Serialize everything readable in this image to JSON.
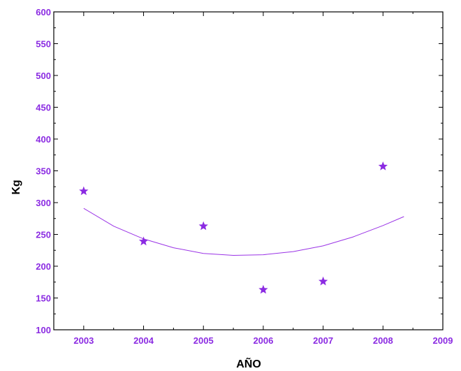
{
  "chart_data": {
    "type": "scatter",
    "title": "",
    "xlabel": "AÑO",
    "ylabel": "Kg",
    "xlim": [
      2002.5,
      2009
    ],
    "ylim": [
      100,
      600
    ],
    "x_ticks": [
      2003,
      2004,
      2005,
      2006,
      2007,
      2008,
      2009
    ],
    "y_ticks": [
      100,
      150,
      200,
      250,
      300,
      350,
      400,
      450,
      500,
      550,
      600
    ],
    "grid": false,
    "legend": "none",
    "marker": "star",
    "series": [
      {
        "x": [
          2003,
          2004,
          2005,
          2006,
          2007,
          2008
        ],
        "y": [
          318,
          239,
          263,
          163,
          176,
          357
        ]
      }
    ],
    "fit_curve": {
      "type": "quadratic",
      "x": [
        2003,
        2003.5,
        2004,
        2004.5,
        2005,
        2005.5,
        2006,
        2006.5,
        2007,
        2007.5,
        2008,
        2008.35
      ],
      "y": [
        291,
        263,
        243,
        229,
        220,
        217,
        218,
        223,
        232,
        246,
        264,
        278
      ]
    },
    "colors": {
      "marker": "#8b2be2",
      "fit_line": "#9a33e6",
      "tick_labels": "#8b2be2",
      "axis_titles": "#000000",
      "axes": "#000000"
    }
  }
}
